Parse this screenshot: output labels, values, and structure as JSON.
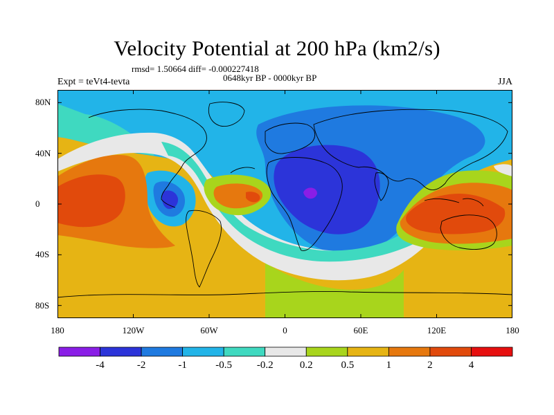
{
  "title": "Velocity Potential at 200 hPa (km2/s)",
  "stats": "rmsd= 1.50664 diff= -0.000227418",
  "period": "0648kyr BP - 0000kyr BP",
  "experiment": "Expt = teVt4-tevta",
  "season": "JJA",
  "y_ticks": [
    {
      "label": "80N",
      "lat": 80
    },
    {
      "label": "40N",
      "lat": 40
    },
    {
      "label": "0",
      "lat": 0
    },
    {
      "label": "40S",
      "lat": -40
    },
    {
      "label": "80S",
      "lat": -80
    }
  ],
  "x_ticks": [
    {
      "label": "180",
      "lon": -180
    },
    {
      "label": "120W",
      "lon": -120
    },
    {
      "label": "60W",
      "lon": -60
    },
    {
      "label": "0",
      "lon": 0
    },
    {
      "label": "60E",
      "lon": 60
    },
    {
      "label": "120E",
      "lon": 120
    },
    {
      "label": "180",
      "lon": 180
    }
  ],
  "colorbar": {
    "colors": [
      "#8a1ee6",
      "#2c34d9",
      "#1f7ae0",
      "#22b4e8",
      "#3fd9c0",
      "#e8e8e8",
      "#a8d51c",
      "#e6b414",
      "#e6780e",
      "#e14a0c",
      "#e60f0f"
    ],
    "labels": [
      "-4",
      "-2",
      "-1",
      "-0.5",
      "-0.2",
      "0.2",
      "0.5",
      "1",
      "2",
      "4"
    ]
  },
  "map_colors": {
    "ocean_base": "#e6b414",
    "land_outline": "#000000"
  }
}
